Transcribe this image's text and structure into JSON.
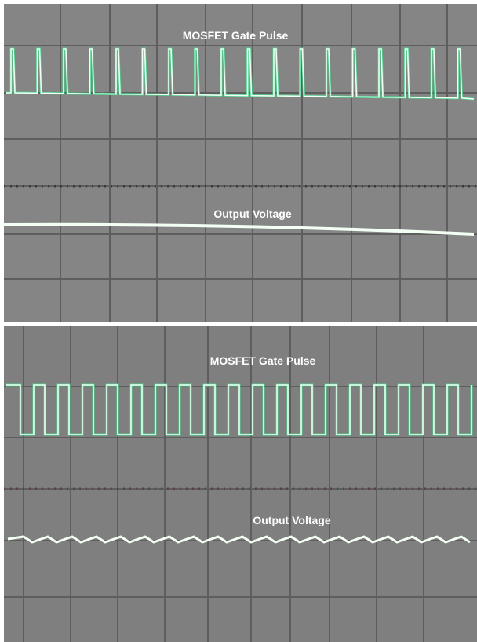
{
  "panels": [
    {
      "gate_label": "MOSFET Gate Pulse",
      "output_label": "Output Voltage"
    },
    {
      "gate_label": "MOSFET Gate Pulse",
      "output_label": "Output Voltage"
    }
  ]
}
